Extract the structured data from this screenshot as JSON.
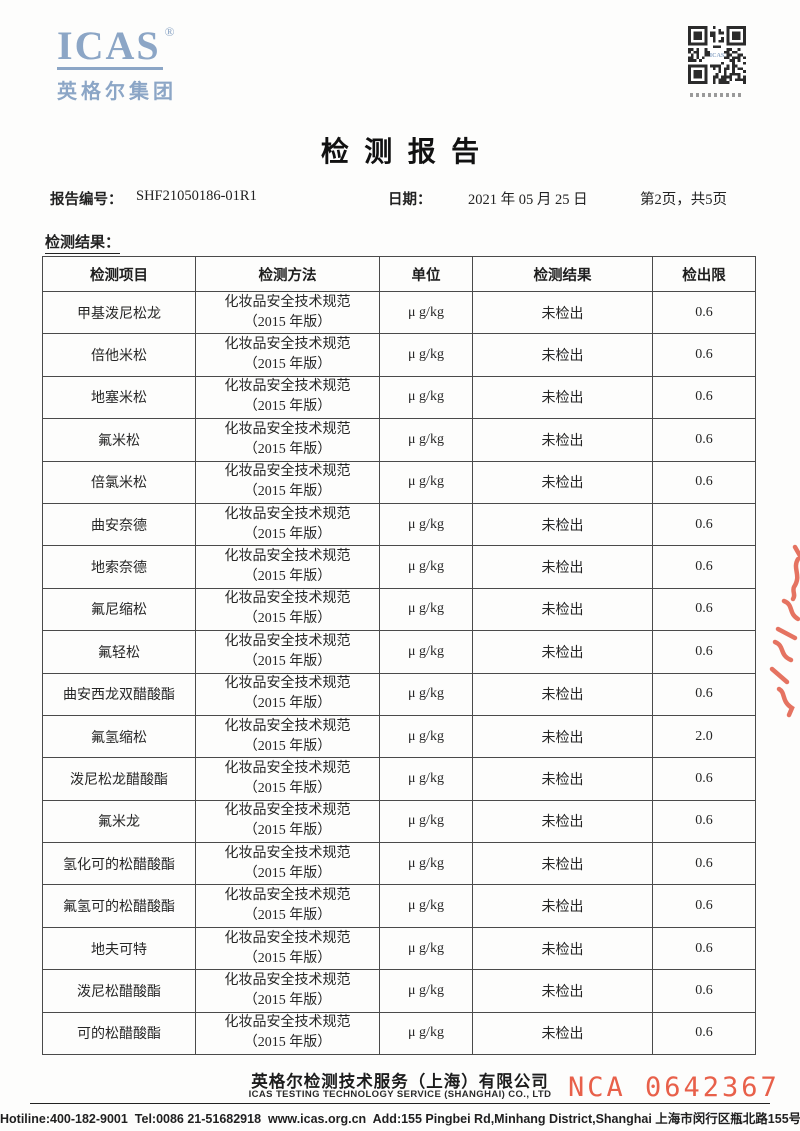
{
  "logo": {
    "brand": "ICAS",
    "registered": "®",
    "group": "英格尔集团",
    "color": "#8ca6c6"
  },
  "header": {
    "title": "检测报告",
    "report_no_label": "报告编号：",
    "report_no": "SHF21050186-01R1",
    "date_label": "日期：",
    "date": "2021 年 05 月 25 日",
    "page_info": "第2页，共5页"
  },
  "section": {
    "results_label": "检测结果："
  },
  "table": {
    "headers": [
      "检测项目",
      "检测方法",
      "单位",
      "检测结果",
      "检出限"
    ],
    "rows": [
      {
        "item": "甲基泼尼松龙",
        "method": [
          "化妆品安全技术规范",
          "（2015 年版）"
        ],
        "unit": "μ g/kg",
        "result": "未检出",
        "limit": "0.6"
      },
      {
        "item": "倍他米松",
        "method": [
          "化妆品安全技术规范",
          "（2015 年版）"
        ],
        "unit": "μ g/kg",
        "result": "未检出",
        "limit": "0.6"
      },
      {
        "item": "地塞米松",
        "method": [
          "化妆品安全技术规范",
          "（2015 年版）"
        ],
        "unit": "μ g/kg",
        "result": "未检出",
        "limit": "0.6"
      },
      {
        "item": "氟米松",
        "method": [
          "化妆品安全技术规范",
          "（2015 年版）"
        ],
        "unit": "μ g/kg",
        "result": "未检出",
        "limit": "0.6"
      },
      {
        "item": "倍氯米松",
        "method": [
          "化妆品安全技术规范",
          "（2015 年版）"
        ],
        "unit": "μ g/kg",
        "result": "未检出",
        "limit": "0.6"
      },
      {
        "item": "曲安奈德",
        "method": [
          "化妆品安全技术规范",
          "（2015 年版）"
        ],
        "unit": "μ g/kg",
        "result": "未检出",
        "limit": "0.6"
      },
      {
        "item": "地索奈德",
        "method": [
          "化妆品安全技术规范",
          "（2015 年版）"
        ],
        "unit": "μ g/kg",
        "result": "未检出",
        "limit": "0.6"
      },
      {
        "item": "氟尼缩松",
        "method": [
          "化妆品安全技术规范",
          "（2015 年版）"
        ],
        "unit": "μ g/kg",
        "result": "未检出",
        "limit": "0.6"
      },
      {
        "item": "氟轻松",
        "method": [
          "化妆品安全技术规范",
          "（2015 年版）"
        ],
        "unit": "μ g/kg",
        "result": "未检出",
        "limit": "0.6"
      },
      {
        "item": "曲安西龙双醋酸酯",
        "method": [
          "化妆品安全技术规范",
          "（2015 年版）"
        ],
        "unit": "μ g/kg",
        "result": "未检出",
        "limit": "0.6"
      },
      {
        "item": "氟氢缩松",
        "method": [
          "化妆品安全技术规范",
          "（2015 年版）"
        ],
        "unit": "μ g/kg",
        "result": "未检出",
        "limit": "2.0"
      },
      {
        "item": "泼尼松龙醋酸酯",
        "method": [
          "化妆品安全技术规范",
          "（2015 年版）"
        ],
        "unit": "μ g/kg",
        "result": "未检出",
        "limit": "0.6"
      },
      {
        "item": "氟米龙",
        "method": [
          "化妆品安全技术规范",
          "（2015 年版）"
        ],
        "unit": "μ g/kg",
        "result": "未检出",
        "limit": "0.6"
      },
      {
        "item": "氢化可的松醋酸酯",
        "method": [
          "化妆品安全技术规范",
          "（2015 年版）"
        ],
        "unit": "μ g/kg",
        "result": "未检出",
        "limit": "0.6"
      },
      {
        "item": "氟氢可的松醋酸酯",
        "method": [
          "化妆品安全技术规范",
          "（2015 年版）"
        ],
        "unit": "μ g/kg",
        "result": "未检出",
        "limit": "0.6"
      },
      {
        "item": "地夫可特",
        "method": [
          "化妆品安全技术规范",
          "（2015 年版）"
        ],
        "unit": "μ g/kg",
        "result": "未检出",
        "limit": "0.6"
      },
      {
        "item": "泼尼松醋酸酯",
        "method": [
          "化妆品安全技术规范",
          "（2015 年版）"
        ],
        "unit": "μ g/kg",
        "result": "未检出",
        "limit": "0.6"
      },
      {
        "item": "可的松醋酸酯",
        "method": [
          "化妆品安全技术规范",
          "（2015 年版）"
        ],
        "unit": "μ g/kg",
        "result": "未检出",
        "limit": "0.6"
      }
    ]
  },
  "footer": {
    "company_cn": "英格尔检测技术服务（上海）有限公司",
    "company_en": "ICAS TESTING TECHNOLOGY SERVICE (SHANGHAI) CO., LTD",
    "cert_no": "NCA 0642367",
    "cert_color": "#e8604a",
    "contact": "Hotiline:400-182-9001  Tel:0086 21-51682918  www.icas.org.cn  Add:155 Pingbei Rd,Minhang District,Shanghai 上海市闵行区瓶北路155号"
  },
  "stamp": {
    "color": "#e2604c"
  }
}
